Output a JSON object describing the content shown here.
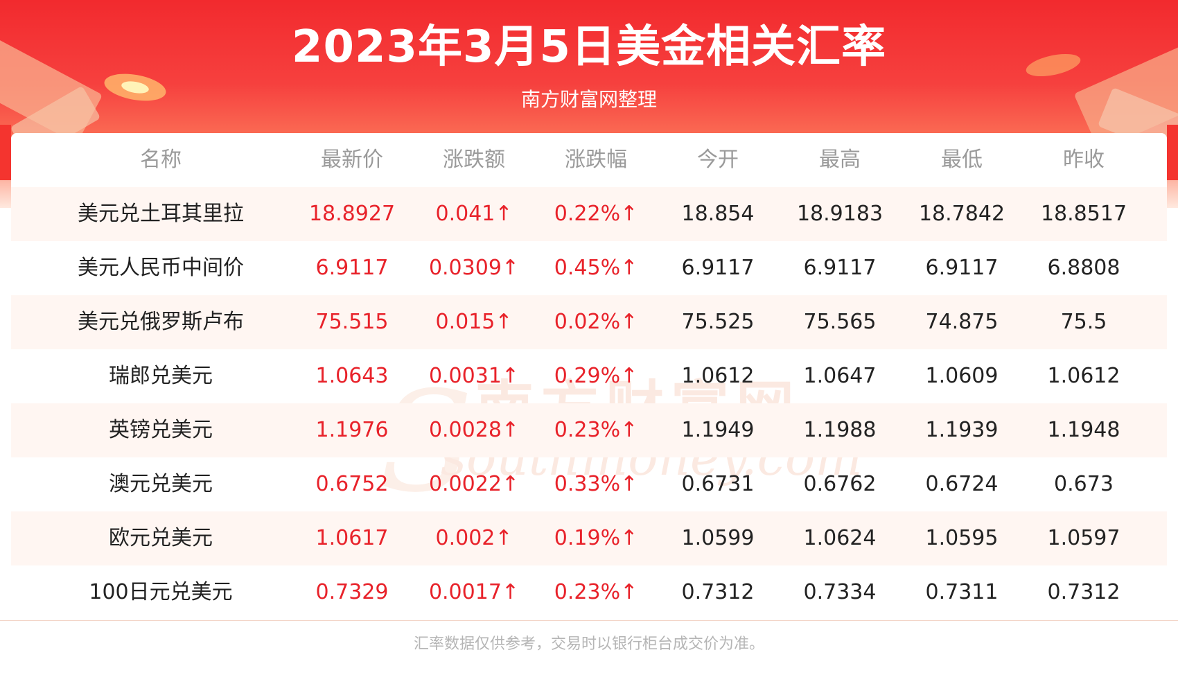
{
  "header": {
    "title": "2023年3月5日美金相关汇率",
    "subtitle": "南方财富网整理"
  },
  "watermark": {
    "cn": "南方财富网",
    "en": "southmoney.com"
  },
  "table": {
    "columns": [
      "名称",
      "最新价",
      "涨跌额",
      "涨跌幅",
      "今开",
      "最高",
      "最低",
      "昨收"
    ],
    "rows": [
      [
        "美元兑土耳其里拉",
        "18.8927",
        "0.041↑",
        "0.22%↑",
        "18.854",
        "18.9183",
        "18.7842",
        "18.8517"
      ],
      [
        "美元人民币中间价",
        "6.9117",
        "0.0309↑",
        "0.45%↑",
        "6.9117",
        "6.9117",
        "6.9117",
        "6.8808"
      ],
      [
        "美元兑俄罗斯卢布",
        "75.515",
        "0.015↑",
        "0.02%↑",
        "75.525",
        "75.565",
        "74.875",
        "75.5"
      ],
      [
        "瑞郎兑美元",
        "1.0643",
        "0.0031↑",
        "0.29%↑",
        "1.0612",
        "1.0647",
        "1.0609",
        "1.0612"
      ],
      [
        "英镑兑美元",
        "1.1976",
        "0.0028↑",
        "0.23%↑",
        "1.1949",
        "1.1988",
        "1.1939",
        "1.1948"
      ],
      [
        "澳元兑美元",
        "0.6752",
        "0.0022↑",
        "0.33%↑",
        "0.6731",
        "0.6762",
        "0.6724",
        "0.673"
      ],
      [
        "欧元兑美元",
        "1.0617",
        "0.002↑",
        "0.19%↑",
        "1.0599",
        "1.0624",
        "1.0595",
        "1.0597"
      ],
      [
        "100日元兑美元",
        "0.7329",
        "0.0017↑",
        "0.23%↑",
        "0.7312",
        "0.7334",
        "0.7311",
        "0.7312"
      ]
    ]
  },
  "footer": {
    "note": "汇率数据仅供参考，交易时以银行柜台成交价为准。"
  },
  "colors": {
    "banner_red": "#f22a2e",
    "rise_red": "#e8222a",
    "alt_row": "#fff6f2"
  }
}
